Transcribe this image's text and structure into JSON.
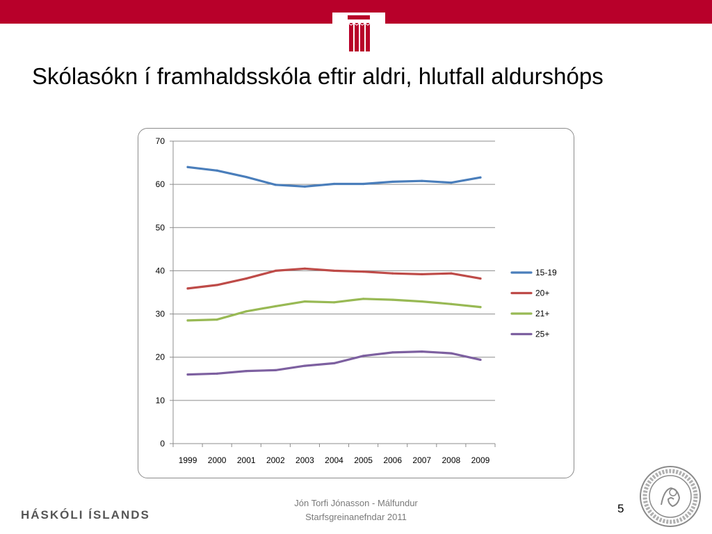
{
  "slide": {
    "title": "Skólasókn í framhaldsskóla eftir aldri, hlutfall aldurshóps",
    "brand": "HÁSKÓLI ÍSLANDS",
    "author_line1": "Jón Torfi Jónasson - Málfundur",
    "author_line2": "Starfsgreinanefndar 2011",
    "page_number": "5",
    "accent_color": "#b8002a"
  },
  "chart_data": {
    "type": "line",
    "title": "",
    "xlabel": "",
    "ylabel": "",
    "x": [
      "1999",
      "2000",
      "2001",
      "2002",
      "2003",
      "2004",
      "2005",
      "2006",
      "2007",
      "2008",
      "2009"
    ],
    "ylim": [
      0,
      70
    ],
    "yticks": [
      "0",
      "10",
      "20",
      "30",
      "40",
      "50",
      "60",
      "70"
    ],
    "grid": true,
    "legend_position": "right",
    "series": [
      {
        "name": "15-19",
        "color": "#4a7ebb",
        "values": [
          64.0,
          63.2,
          61.7,
          59.9,
          59.5,
          60.1,
          60.1,
          60.6,
          60.8,
          60.4,
          61.6
        ]
      },
      {
        "name": "20+",
        "color": "#be4b48",
        "values": [
          35.9,
          36.7,
          38.2,
          40.0,
          40.5,
          40.0,
          39.8,
          39.4,
          39.2,
          39.4,
          38.2
        ]
      },
      {
        "name": "21+",
        "color": "#98b954",
        "values": [
          28.5,
          28.7,
          30.6,
          31.8,
          32.9,
          32.7,
          33.5,
          33.3,
          32.9,
          32.3,
          31.6
        ]
      },
      {
        "name": "25+",
        "color": "#7d60a0",
        "values": [
          16.0,
          16.2,
          16.8,
          17.0,
          18.0,
          18.6,
          20.3,
          21.1,
          21.3,
          20.9,
          19.4
        ]
      }
    ]
  }
}
